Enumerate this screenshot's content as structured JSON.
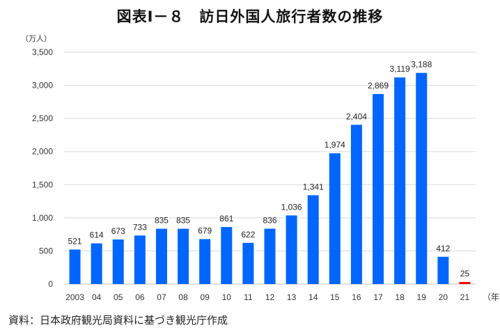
{
  "chart_data": {
    "type": "bar",
    "title": "図表Ⅰ－８　訪日外国人旅行者数の推移",
    "ylabel": "（万人）",
    "xlabel": "（年）",
    "ylim": [
      0,
      3500
    ],
    "yticks": [
      "0",
      "500",
      "1,000",
      "1,500",
      "2,000",
      "2,500",
      "3,000",
      "3,500"
    ],
    "ytick_values": [
      0,
      500,
      1000,
      1500,
      2000,
      2500,
      3000,
      3500
    ],
    "grid": true,
    "categories": [
      "2003",
      "04",
      "05",
      "06",
      "07",
      "08",
      "09",
      "10",
      "11",
      "12",
      "13",
      "14",
      "15",
      "16",
      "17",
      "18",
      "19",
      "20",
      "21"
    ],
    "values": [
      521,
      614,
      673,
      733,
      835,
      835,
      679,
      861,
      622,
      836,
      1036,
      1341,
      1974,
      2404,
      2869,
      3119,
      3188,
      412,
      25
    ],
    "labels": [
      "521",
      "614",
      "673",
      "733",
      "835",
      "835",
      "679",
      "861",
      "622",
      "836",
      "1,036",
      "1,341",
      "1,974",
      "2,404",
      "2,869",
      "3,119",
      "3,188",
      "412",
      "25"
    ],
    "colors": {
      "default": "#0066ff",
      "highlight": "#ff0000"
    },
    "highlight_index": 18,
    "source": "資料：日本政府観光局資料に基づき観光庁作成"
  }
}
